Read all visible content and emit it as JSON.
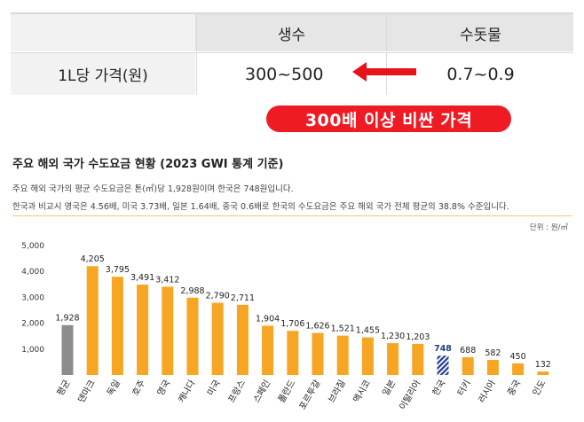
{
  "table": {
    "headers": [
      "",
      "생수",
      "수돗물"
    ],
    "row_label": "1L당 가격(원)",
    "bottled_value": "300~500",
    "tap_value": "0.7~0.9"
  },
  "callout": "300배 이상 비싼 가격",
  "colors": {
    "bar": "#f6a623",
    "average": "#8c8c8c",
    "korea": "#1f3e8a",
    "callout": "#ee1b24",
    "arrow": "#e8121b"
  },
  "chart_data": {
    "type": "bar",
    "title": "주요 해외 국가 수도요금 현황 (2023 GWI 통계 기준)",
    "description": [
      "주요 해외 국가의 평균 수도요금은 톤(㎥)당 1,928원이며 한국은 748원입니다.",
      "한국과 비교시 영국은 4.56배, 미국 3.73배, 일본 1.64배, 중국 0.6배로 한국의 수도요금은 주요 해외 국가 전체 평균의 38.8% 수준입니다."
    ],
    "unit": "단위 : 원/㎥",
    "categories": [
      "평균",
      "덴마크",
      "독일",
      "호주",
      "영국",
      "캐나다",
      "미국",
      "프랑스",
      "스페인",
      "폴란드",
      "포르투갈",
      "브라질",
      "멕시코",
      "일본",
      "이탈리아",
      "한국",
      "터키",
      "러시아",
      "중국",
      "인도"
    ],
    "values": [
      1928,
      4205,
      3795,
      3491,
      3412,
      2988,
      2790,
      2711,
      1904,
      1706,
      1626,
      1521,
      1455,
      1230,
      1203,
      748,
      688,
      582,
      450,
      132
    ],
    "value_labels": [
      "1,928",
      "4,205",
      "3,795",
      "3,491",
      "3,412",
      "2,988",
      "2,790",
      "2,711",
      "1,904",
      "1,706",
      "1,626",
      "1,521",
      "1,455",
      "1,230",
      "1,203",
      "748",
      "688",
      "582",
      "450",
      "132"
    ],
    "highlight": {
      "average_index": 0,
      "korea_index": 15
    },
    "yticks": [
      1000,
      2000,
      3000,
      4000,
      5000
    ],
    "ytick_labels": [
      "1,000",
      "2,000",
      "3,000",
      "4,000",
      "5,000"
    ],
    "ylim": [
      0,
      5000
    ],
    "grid": false
  }
}
